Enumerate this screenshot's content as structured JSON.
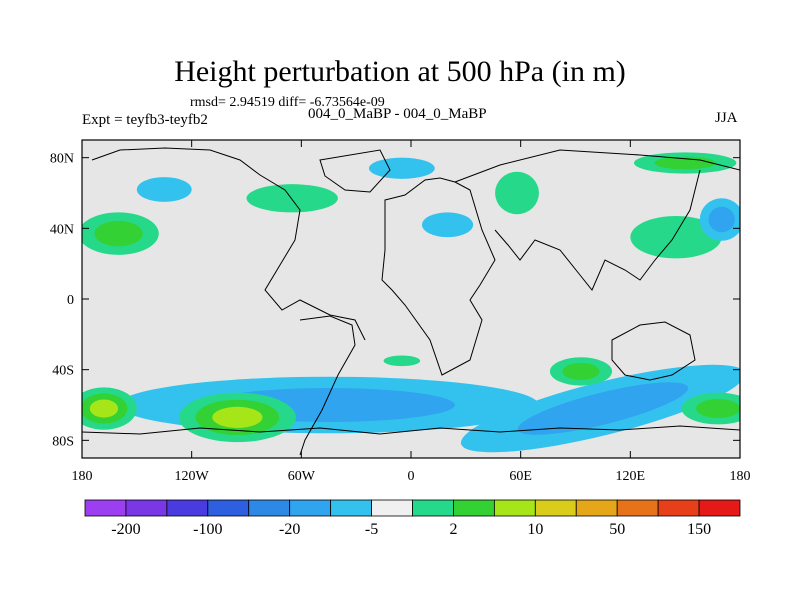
{
  "figure": {
    "title": "Height perturbation at 500 hPa (in m)",
    "stats": "rmsd= 2.94519 diff= -6.73564e-09",
    "left_label": "Expt = teyfb3-teyfb2",
    "center_label": "004_0_MaBP - 004_0_MaBP",
    "right_label": "JJA"
  },
  "chart_data": {
    "type": "heatmap",
    "title": "Height perturbation at 500 hPa (in m)",
    "xlabel": "",
    "ylabel": "",
    "xlim": [
      -180,
      180
    ],
    "ylim": [
      -90,
      90
    ],
    "x_ticks": [
      {
        "value": -180,
        "label": "180"
      },
      {
        "value": -120,
        "label": "120W"
      },
      {
        "value": -60,
        "label": "60W"
      },
      {
        "value": 0,
        "label": "0"
      },
      {
        "value": 60,
        "label": "60E"
      },
      {
        "value": 120,
        "label": "120E"
      },
      {
        "value": 180,
        "label": "180"
      }
    ],
    "y_ticks": [
      {
        "value": 80,
        "label": "80N"
      },
      {
        "value": 40,
        "label": "40N"
      },
      {
        "value": 0,
        "label": "0"
      },
      {
        "value": -40,
        "label": "40S"
      },
      {
        "value": -80,
        "label": "80S"
      }
    ],
    "background_color": "#e6e6e6",
    "colorbar": {
      "colors": [
        "#9b3ff0",
        "#7a37e6",
        "#4a3be0",
        "#2e5fe0",
        "#2d88e6",
        "#30a4ee",
        "#33c2ee",
        "#f0f0f0",
        "#26d98a",
        "#33d133",
        "#a6e619",
        "#d9cc1a",
        "#e6a619",
        "#e67319",
        "#e63f19",
        "#e61919"
      ],
      "labels": [
        {
          "boundary": 1,
          "text": "-200"
        },
        {
          "boundary": 3,
          "text": "-100"
        },
        {
          "boundary": 5,
          "text": "-20"
        },
        {
          "boundary": 7,
          "text": "-5"
        },
        {
          "boundary": 9,
          "text": "2"
        },
        {
          "boundary": 11,
          "text": "10"
        },
        {
          "boundary": 13,
          "text": "50"
        },
        {
          "boundary": 15,
          "text": "150"
        }
      ]
    },
    "regions": [
      {
        "name": "southern-band",
        "cx": -45,
        "cy": -60,
        "rx": 115,
        "ry": 16,
        "rot": 0,
        "colors": [
          "#33c2ee",
          "#30a4ee"
        ]
      },
      {
        "name": "southern-band-east",
        "cx": 105,
        "cy": -62,
        "rx": 80,
        "ry": 15,
        "rot": -14,
        "colors": [
          "#33c2ee",
          "#30a4ee"
        ]
      },
      {
        "name": "south-pacific-high",
        "cx": -95,
        "cy": -67,
        "rx": 32,
        "ry": 14,
        "rot": 0,
        "colors": [
          "#26d98a",
          "#33d133",
          "#a6e619"
        ]
      },
      {
        "name": "south-west-pacific-high",
        "cx": -168,
        "cy": -62,
        "rx": 18,
        "ry": 12,
        "rot": 0,
        "colors": [
          "#26d98a",
          "#33d133",
          "#a6e619"
        ]
      },
      {
        "name": "south-indian-high",
        "cx": 93,
        "cy": -41,
        "rx": 17,
        "ry": 8,
        "rot": 0,
        "colors": [
          "#26d98a",
          "#33d133"
        ]
      },
      {
        "name": "south-east-high",
        "cx": 168,
        "cy": -62,
        "rx": 20,
        "ry": 9,
        "rot": 0,
        "colors": [
          "#26d98a",
          "#33d133"
        ]
      },
      {
        "name": "north-pacific-green",
        "cx": -160,
        "cy": 37,
        "rx": 22,
        "ry": 12,
        "rot": 0,
        "colors": [
          "#26d98a",
          "#33d133"
        ]
      },
      {
        "name": "north-america-green",
        "cx": -65,
        "cy": 57,
        "rx": 25,
        "ry": 8,
        "rot": 0,
        "colors": [
          "#26d98a"
        ]
      },
      {
        "name": "asia-green",
        "cx": 58,
        "cy": 60,
        "rx": 12,
        "ry": 12,
        "rot": 0,
        "colors": [
          "#26d98a"
        ]
      },
      {
        "name": "east-asia-green",
        "cx": 145,
        "cy": 35,
        "rx": 25,
        "ry": 12,
        "rot": 0,
        "colors": [
          "#26d98a"
        ]
      },
      {
        "name": "arctic-green",
        "cx": 150,
        "cy": 77,
        "rx": 28,
        "ry": 6,
        "rot": 0,
        "colors": [
          "#26d98a",
          "#33d133"
        ]
      },
      {
        "name": "north-blue-1",
        "cx": -135,
        "cy": 62,
        "rx": 15,
        "ry": 7,
        "rot": 0,
        "colors": [
          "#33c2ee"
        ]
      },
      {
        "name": "north-blue-2",
        "cx": -5,
        "cy": 74,
        "rx": 18,
        "ry": 6,
        "rot": 0,
        "colors": [
          "#33c2ee"
        ]
      },
      {
        "name": "north-blue-3",
        "cx": 20,
        "cy": 42,
        "rx": 14,
        "ry": 7,
        "rot": 0,
        "colors": [
          "#33c2ee"
        ]
      },
      {
        "name": "north-blue-4",
        "cx": 170,
        "cy": 45,
        "rx": 12,
        "ry": 12,
        "rot": 0,
        "colors": [
          "#33c2ee",
          "#30a4ee"
        ]
      },
      {
        "name": "tropical-atlantic",
        "cx": -5,
        "cy": -35,
        "rx": 10,
        "ry": 3,
        "rot": 0,
        "colors": [
          "#26d98a"
        ]
      }
    ]
  }
}
